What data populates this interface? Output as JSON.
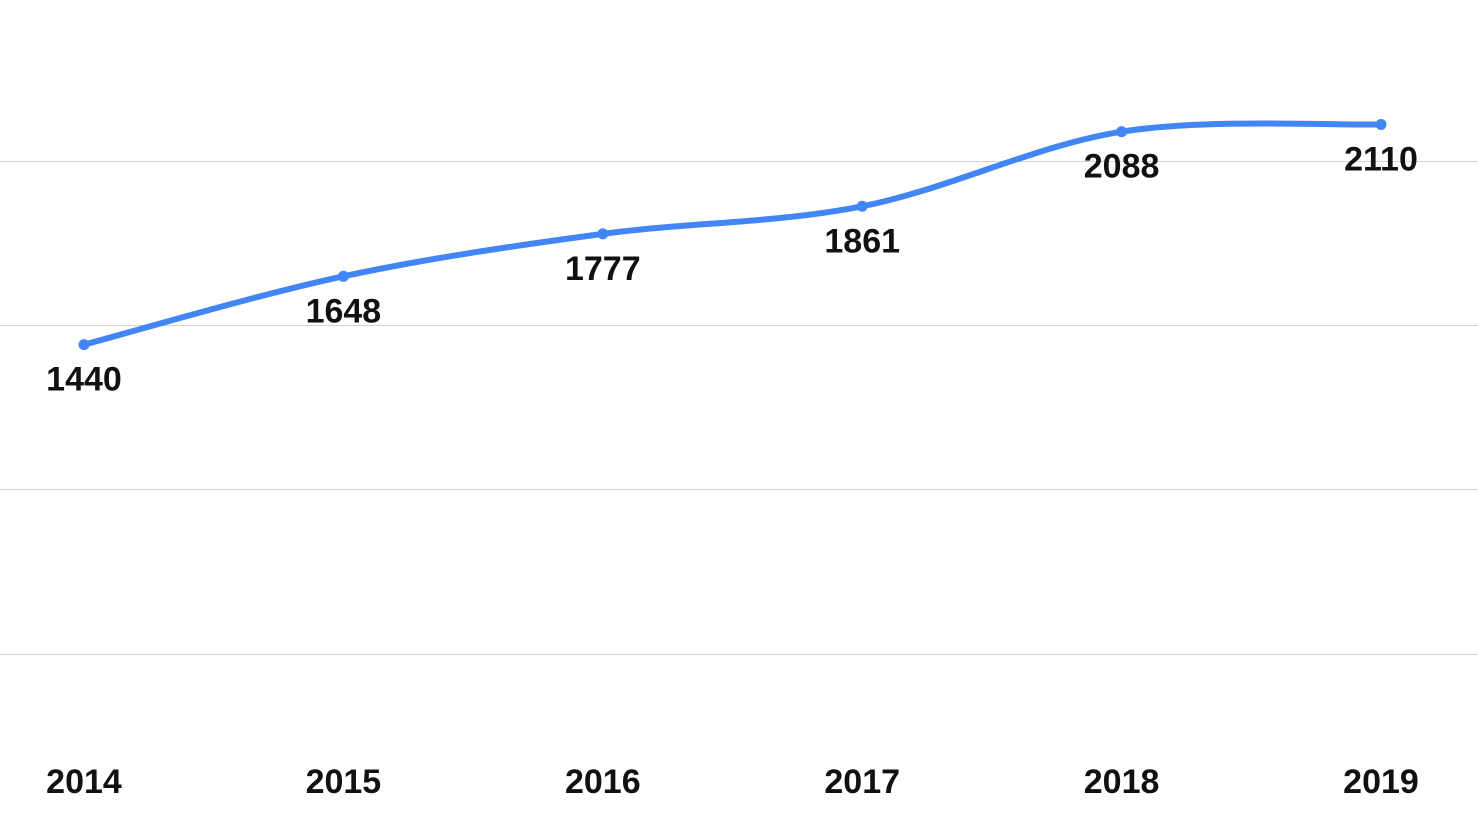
{
  "chart_data": {
    "type": "line",
    "title": "",
    "xlabel": "",
    "ylabel": "",
    "categories": [
      "2014",
      "2015",
      "2016",
      "2017",
      "2018",
      "2019"
    ],
    "series": [
      {
        "values": [
          1440,
          1648,
          1777,
          1861,
          2088,
          2110
        ],
        "color": "#4285F4"
      }
    ],
    "data_labels": [
      "1440",
      "1648",
      "1777",
      "1861",
      "2088",
      "2110"
    ],
    "ylim": [
      0,
      2500
    ],
    "gridlines_y": [
      500,
      1000,
      1500,
      2000
    ],
    "grid": true,
    "legend": "none",
    "smooth": true
  }
}
